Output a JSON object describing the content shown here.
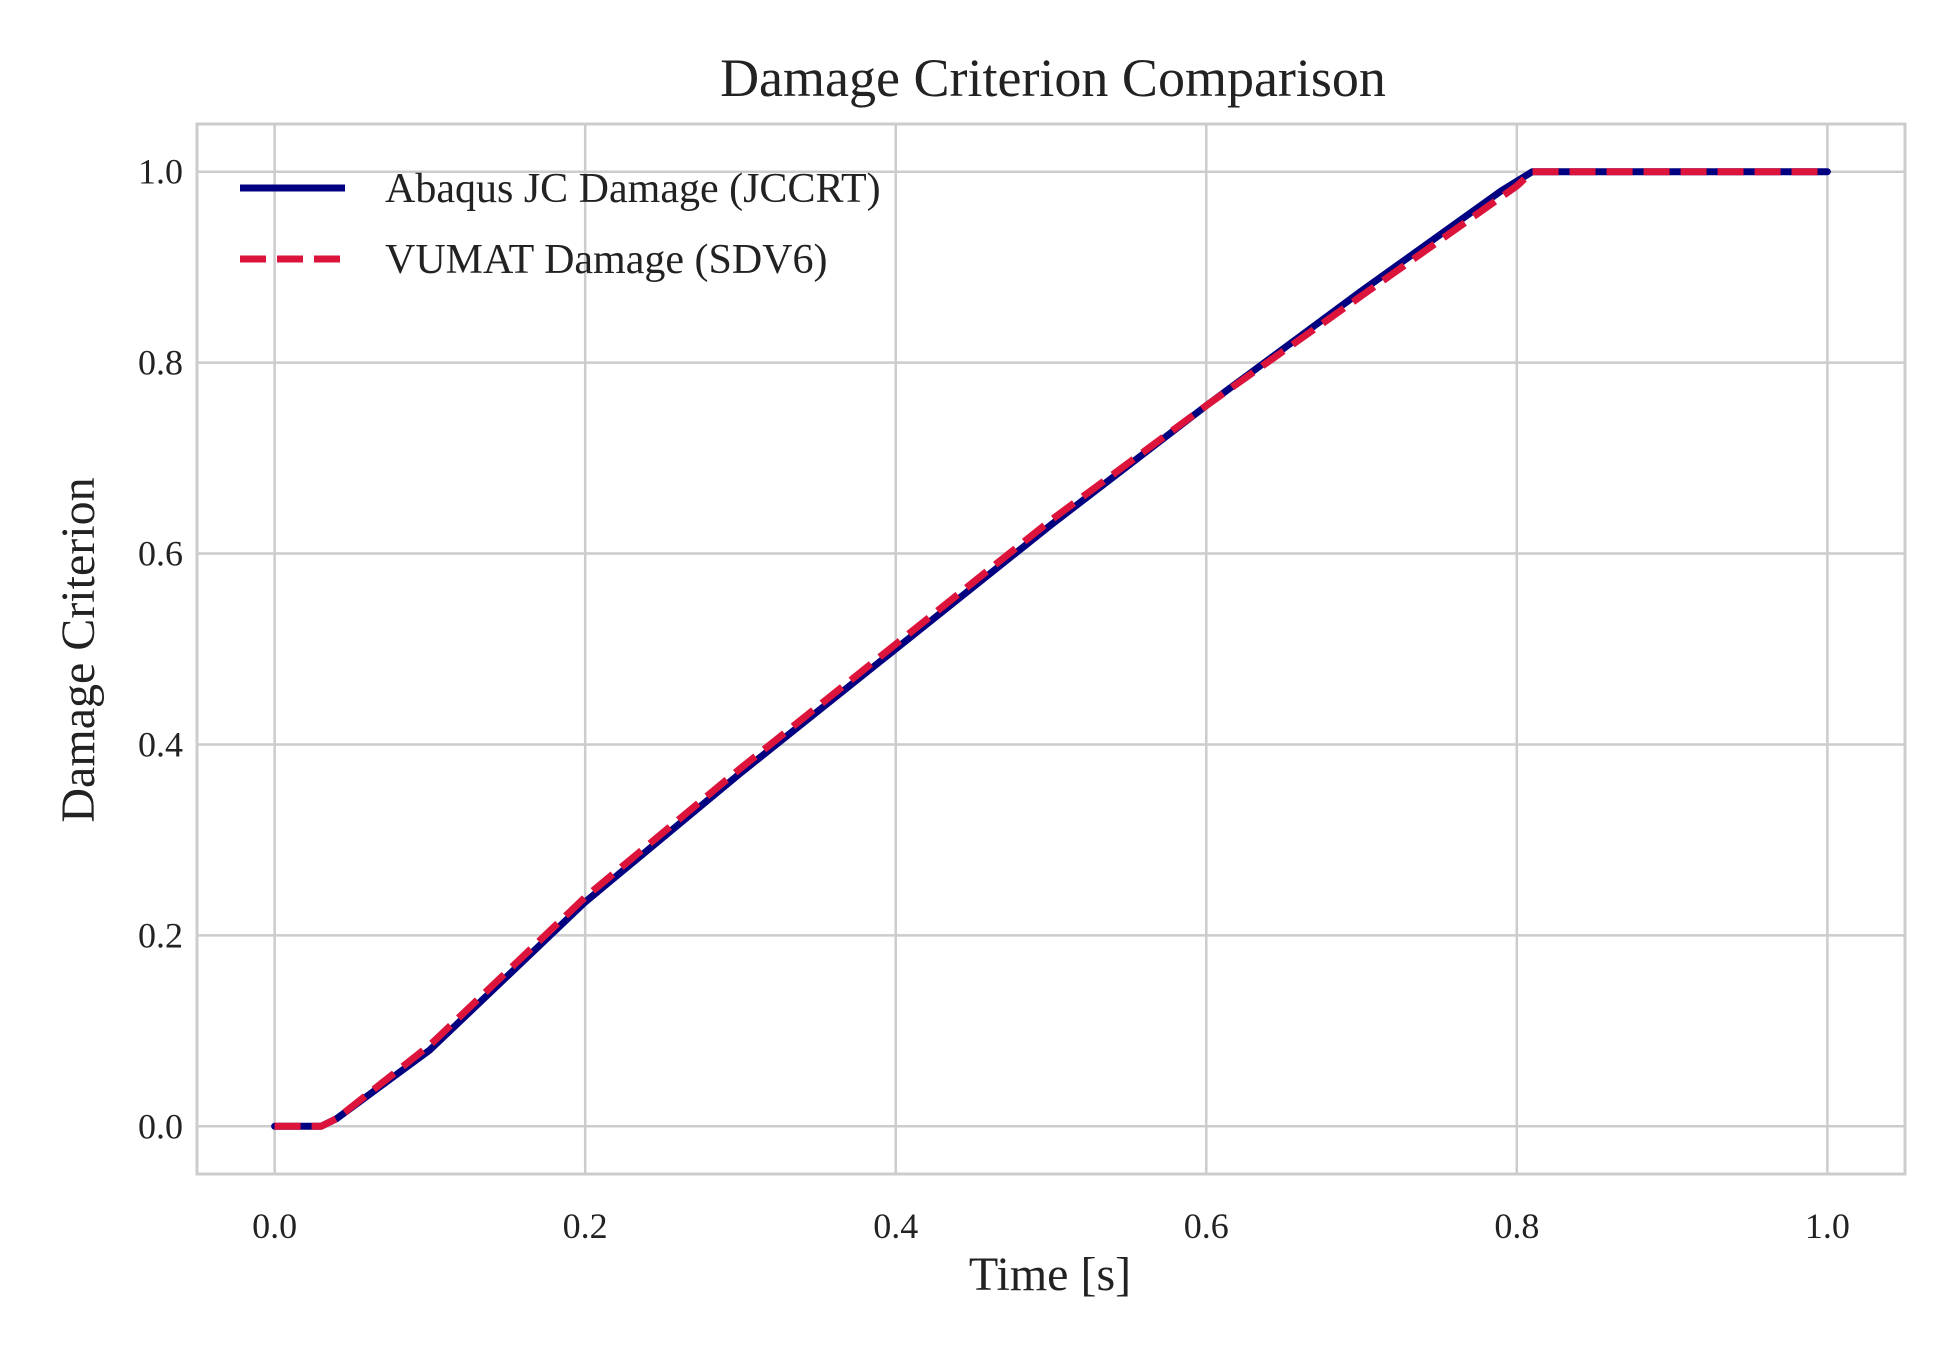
{
  "chart_data": {
    "type": "line",
    "title": "Damage Criterion Comparison",
    "xlabel": "Time [s]",
    "ylabel": "Damage Criterion",
    "xlim": [
      -0.05,
      1.05
    ],
    "ylim": [
      -0.05,
      1.05
    ],
    "xticks": [
      0.0,
      0.2,
      0.4,
      0.6,
      0.8,
      1.0
    ],
    "xtick_labels": [
      "0.0",
      "0.2",
      "0.4",
      "0.6",
      "0.8",
      "1.0"
    ],
    "yticks": [
      0.0,
      0.2,
      0.4,
      0.6,
      0.8,
      1.0
    ],
    "ytick_labels": [
      "0.0",
      "0.2",
      "0.4",
      "0.6",
      "0.8",
      "1.0"
    ],
    "grid": true,
    "legend_position": "upper-left",
    "series": [
      {
        "name": "Abaqus JC Damage (JCCRT)",
        "color": "#000080",
        "style": "solid",
        "x": [
          0.0,
          0.03,
          0.04,
          0.1,
          0.2,
          0.3,
          0.4,
          0.5,
          0.6,
          0.7,
          0.79,
          0.81,
          1.0
        ],
        "y": [
          0.0,
          0.0,
          0.008,
          0.08,
          0.235,
          0.37,
          0.5,
          0.63,
          0.755,
          0.875,
          0.98,
          1.0,
          1.0
        ]
      },
      {
        "name": "VUMAT Damage (SDV6)",
        "color": "#DC143C",
        "style": "dashed",
        "x": [
          0.0,
          0.03,
          0.04,
          0.1,
          0.2,
          0.3,
          0.4,
          0.5,
          0.6,
          0.7,
          0.8,
          0.81,
          1.0
        ],
        "y": [
          0.0,
          0.0,
          0.008,
          0.085,
          0.24,
          0.375,
          0.505,
          0.635,
          0.755,
          0.87,
          0.985,
          1.0,
          1.0
        ]
      }
    ]
  }
}
